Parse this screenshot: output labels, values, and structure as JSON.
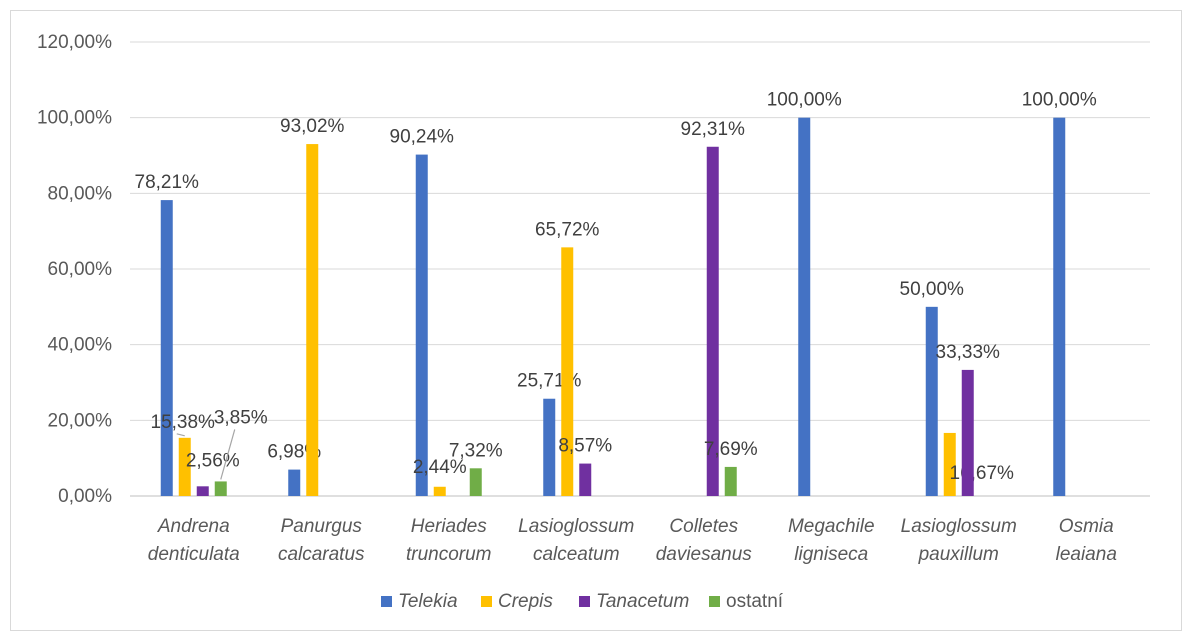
{
  "chart_data": {
    "type": "bar",
    "categories": [
      [
        "Andrena",
        "denticulata"
      ],
      [
        "Panurgus",
        "calcaratus"
      ],
      [
        "Heriades",
        "truncorum"
      ],
      [
        "Lasioglossum",
        "calceatum"
      ],
      [
        "Colletes",
        "daviesanus"
      ],
      [
        "Megachile",
        "ligniseca"
      ],
      [
        "Lasioglossum",
        "pauxillum"
      ],
      [
        "Osmia",
        "leaiana"
      ]
    ],
    "series": [
      {
        "name": "Telekia",
        "italic": true,
        "color": "#4472C4",
        "values": [
          78.21,
          6.98,
          90.24,
          25.71,
          null,
          100.0,
          50.0,
          100.0
        ],
        "labels": [
          "78,21%",
          "6,98%",
          "90,24%",
          "25,71%",
          null,
          "100,00%",
          "50,00%",
          "100,00%"
        ]
      },
      {
        "name": "Crepis",
        "italic": true,
        "color": "#FFC000",
        "values": [
          15.38,
          93.02,
          2.44,
          65.72,
          null,
          null,
          16.67,
          null
        ],
        "labels": [
          "15,38%",
          "93,02%",
          "2,44%",
          "65,72%",
          null,
          null,
          "16,67%",
          null
        ]
      },
      {
        "name": "Tanacetum",
        "italic": true,
        "color": "#7030A0",
        "values": [
          2.56,
          null,
          null,
          8.57,
          92.31,
          null,
          33.33,
          null
        ],
        "labels": [
          "2,56%",
          null,
          null,
          "8,57%",
          "92,31%",
          null,
          "33,33%",
          null
        ]
      },
      {
        "name": "ostatní",
        "italic": false,
        "color": "#70AD47",
        "values": [
          3.85,
          null,
          7.32,
          null,
          7.69,
          null,
          null,
          null
        ],
        "labels": [
          "3,85%",
          null,
          "7,32%",
          null,
          "7,69%",
          null,
          null,
          null
        ]
      }
    ],
    "y_ticks": [
      "0,00%",
      "20,00%",
      "40,00%",
      "60,00%",
      "80,00%",
      "100,00%",
      "120,00%"
    ],
    "ylim": [
      0,
      120
    ],
    "grid": true,
    "legend_position": "bottom"
  }
}
